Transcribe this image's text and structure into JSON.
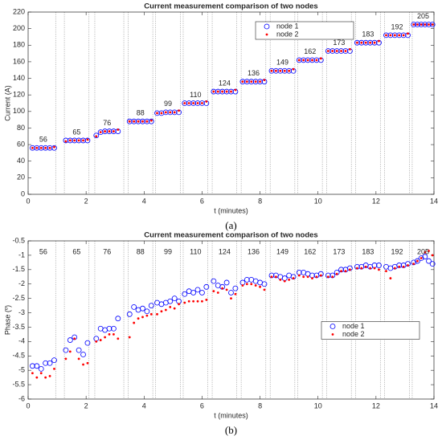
{
  "chart_data": [
    {
      "type": "scatter",
      "title": "Current measurement comparison of two nodes",
      "xlabel": "t (minutes)",
      "ylabel": "Current (A)",
      "caption": "(a)",
      "x": [
        0.15,
        0.3,
        0.45,
        0.6,
        0.75,
        0.9,
        1.3,
        1.45,
        1.6,
        1.75,
        1.9,
        2.05,
        2.35,
        2.5,
        2.65,
        2.8,
        2.95,
        3.1,
        3.5,
        3.65,
        3.8,
        3.95,
        4.1,
        4.25,
        4.45,
        4.6,
        4.75,
        4.9,
        5.05,
        5.2,
        5.4,
        5.55,
        5.7,
        5.85,
        6.0,
        6.15,
        6.4,
        6.55,
        6.7,
        6.85,
        7.0,
        7.15,
        7.4,
        7.55,
        7.7,
        7.85,
        8.0,
        8.15,
        8.4,
        8.55,
        8.7,
        8.85,
        9.0,
        9.15,
        9.35,
        9.5,
        9.65,
        9.8,
        9.95,
        10.1,
        10.35,
        10.5,
        10.65,
        10.8,
        10.95,
        11.1,
        11.35,
        11.5,
        11.65,
        11.8,
        11.95,
        12.1,
        12.35,
        12.5,
        12.65,
        12.8,
        12.95,
        13.1,
        13.3,
        13.43,
        13.56,
        13.69,
        13.82,
        13.95
      ],
      "series": [
        {
          "name": "node 1",
          "color": "#0000ff",
          "marker": "circle",
          "values": [
            56,
            56,
            56,
            56,
            56,
            56,
            65,
            65,
            65,
            65,
            65,
            65,
            71,
            75,
            76,
            76,
            76,
            76,
            88,
            88,
            88,
            88,
            88,
            88,
            98,
            98,
            99,
            99,
            99,
            99,
            110,
            110,
            110,
            110,
            110,
            110,
            124,
            124,
            124,
            124,
            124,
            124,
            136,
            136,
            136,
            136,
            136,
            136,
            149,
            149,
            149,
            149,
            149,
            149,
            162,
            162,
            162,
            162,
            162,
            162,
            173,
            173,
            173,
            173,
            173,
            173,
            183,
            183,
            183,
            183,
            183,
            183,
            192,
            192,
            192,
            192,
            192,
            192,
            205,
            205,
            205,
            205,
            205,
            205
          ]
        },
        {
          "name": "node 2",
          "color": "#ff0000",
          "marker": "dot",
          "values": [
            56,
            56,
            56,
            56,
            56,
            57,
            64,
            65,
            65,
            65,
            65,
            66,
            70,
            75,
            76,
            76,
            76,
            78,
            88,
            88,
            88,
            88,
            88,
            89,
            98,
            98,
            99,
            99,
            99,
            101,
            110,
            110,
            110,
            110,
            110,
            112,
            124,
            124,
            124,
            124,
            124,
            126,
            136,
            136,
            136,
            136,
            136,
            138,
            149,
            149,
            149,
            149,
            149,
            151,
            162,
            162,
            162,
            162,
            162,
            164,
            173,
            173,
            173,
            173,
            173,
            175,
            183,
            183,
            183,
            183,
            183,
            185,
            192,
            192,
            192,
            192,
            192,
            194,
            205,
            205,
            205,
            205,
            205,
            205
          ]
        }
      ],
      "annotations": [
        "56",
        "65",
        "76",
        "88",
        "99",
        "110",
        "124",
        "136",
        "149",
        "162",
        "173",
        "183",
        "192",
        "205"
      ],
      "vlines": [
        0.95,
        1.25,
        2.1,
        2.3,
        3.3,
        3.45,
        4.3,
        4.4,
        5.25,
        5.35,
        6.2,
        6.35,
        7.2,
        7.35,
        8.2,
        8.35,
        9.2,
        9.3,
        10.15,
        10.3,
        11.15,
        11.3,
        12.15,
        12.3,
        13.15,
        13.25
      ],
      "xlim": [
        0,
        14
      ],
      "xticks": [
        0,
        2,
        4,
        6,
        8,
        10,
        12,
        14
      ],
      "ylim": [
        0,
        220
      ],
      "yticks": [
        0,
        20,
        40,
        60,
        80,
        100,
        120,
        140,
        160,
        180,
        200,
        220
      ],
      "legend": "upper right"
    },
    {
      "type": "scatter",
      "title": "Current measurement comparison of two nodes",
      "xlabel": "t (minutes)",
      "ylabel": "Phase (º)",
      "caption": "(b)",
      "x": [
        0.15,
        0.3,
        0.45,
        0.6,
        0.75,
        0.9,
        1.3,
        1.45,
        1.6,
        1.75,
        1.9,
        2.05,
        2.35,
        2.5,
        2.65,
        2.8,
        2.95,
        3.1,
        3.5,
        3.65,
        3.8,
        3.95,
        4.1,
        4.25,
        4.45,
        4.6,
        4.75,
        4.9,
        5.05,
        5.2,
        5.4,
        5.55,
        5.7,
        5.85,
        6.0,
        6.15,
        6.4,
        6.55,
        6.7,
        6.85,
        7.0,
        7.15,
        7.4,
        7.55,
        7.7,
        7.85,
        8.0,
        8.15,
        8.4,
        8.55,
        8.7,
        8.85,
        9.0,
        9.15,
        9.35,
        9.5,
        9.65,
        9.8,
        9.95,
        10.1,
        10.35,
        10.5,
        10.65,
        10.8,
        10.95,
        11.1,
        11.35,
        11.5,
        11.65,
        11.8,
        11.95,
        12.1,
        12.35,
        12.5,
        12.65,
        12.8,
        12.95,
        13.1,
        13.3,
        13.43,
        13.56,
        13.69,
        13.82,
        13.95
      ],
      "series": [
        {
          "name": "node 1",
          "color": "#0000ff",
          "marker": "circle",
          "values": [
            -4.85,
            -4.85,
            -4.95,
            -4.75,
            -4.75,
            -4.65,
            -4.3,
            -3.95,
            -3.85,
            -4.3,
            -4.45,
            -4.05,
            -3.9,
            -3.55,
            -3.6,
            -3.55,
            -3.55,
            -3.2,
            -3.05,
            -2.8,
            -2.9,
            -2.85,
            -2.95,
            -2.75,
            -2.65,
            -2.7,
            -2.65,
            -2.6,
            -2.5,
            -2.6,
            -2.35,
            -2.25,
            -2.3,
            -2.2,
            -2.3,
            -2.1,
            -1.9,
            -2.05,
            -2.1,
            -1.95,
            -2.3,
            -2.15,
            -1.95,
            -1.85,
            -1.85,
            -1.9,
            -1.95,
            -2.0,
            -1.7,
            -1.7,
            -1.75,
            -1.8,
            -1.7,
            -1.75,
            -1.6,
            -1.6,
            -1.65,
            -1.7,
            -1.7,
            -1.65,
            -1.7,
            -1.7,
            -1.6,
            -1.5,
            -1.5,
            -1.45,
            -1.4,
            -1.4,
            -1.35,
            -1.4,
            -1.35,
            -1.35,
            -1.4,
            -1.45,
            -1.4,
            -1.35,
            -1.35,
            -1.3,
            -1.25,
            -1.2,
            -1.1,
            -1.05,
            -1.2,
            -1.3
          ]
        },
        {
          "name": "node 2",
          "color": "#ff0000",
          "marker": "dot",
          "values": [
            -5.1,
            -5.25,
            -5.1,
            -5.25,
            -5.2,
            -4.95,
            -4.6,
            -4.35,
            -3.9,
            -4.6,
            -4.8,
            -4.75,
            -4.0,
            -3.95,
            -3.85,
            -3.75,
            -3.75,
            -3.9,
            -3.85,
            -3.35,
            -3.2,
            -3.15,
            -3.1,
            -3.05,
            -3.05,
            -2.95,
            -2.9,
            -2.8,
            -2.85,
            -2.7,
            -2.65,
            -2.6,
            -2.6,
            -2.6,
            -2.6,
            -2.55,
            -2.25,
            -2.3,
            -2.15,
            -2.2,
            -2.5,
            -2.35,
            -2.05,
            -2.0,
            -2.0,
            -2.05,
            -2.1,
            -2.2,
            -1.75,
            -1.75,
            -1.85,
            -1.9,
            -1.85,
            -1.8,
            -1.7,
            -1.75,
            -1.75,
            -1.8,
            -1.75,
            -1.7,
            -1.75,
            -1.75,
            -1.65,
            -1.55,
            -1.55,
            -1.5,
            -1.45,
            -1.45,
            -1.4,
            -1.45,
            -1.45,
            -1.5,
            -1.55,
            -1.8,
            -1.45,
            -1.4,
            -1.4,
            -1.35,
            -1.3,
            -1.2,
            -1.1,
            -0.9,
            -0.85,
            -1.0
          ]
        }
      ],
      "annotations": [
        "56",
        "65",
        "76",
        "88",
        "99",
        "110",
        "124",
        "136",
        "149",
        "162",
        "173",
        "183",
        "192",
        "205"
      ],
      "vlines": [
        0.95,
        1.25,
        2.1,
        2.3,
        3.3,
        3.45,
        4.3,
        4.4,
        5.25,
        5.35,
        6.2,
        6.35,
        7.2,
        7.35,
        8.2,
        8.35,
        9.2,
        9.3,
        10.15,
        10.3,
        11.15,
        11.3,
        12.15,
        12.3,
        13.15,
        13.25
      ],
      "xlim": [
        0,
        14
      ],
      "xticks": [
        0,
        2,
        4,
        6,
        8,
        10,
        12,
        14
      ],
      "ylim": [
        -6,
        -0.5
      ],
      "yticks": [
        -6,
        -5.5,
        -5,
        -4.5,
        -4,
        -3.5,
        -3,
        -2.5,
        -2,
        -1.5,
        -1,
        -0.5
      ],
      "legend": "center right"
    }
  ]
}
